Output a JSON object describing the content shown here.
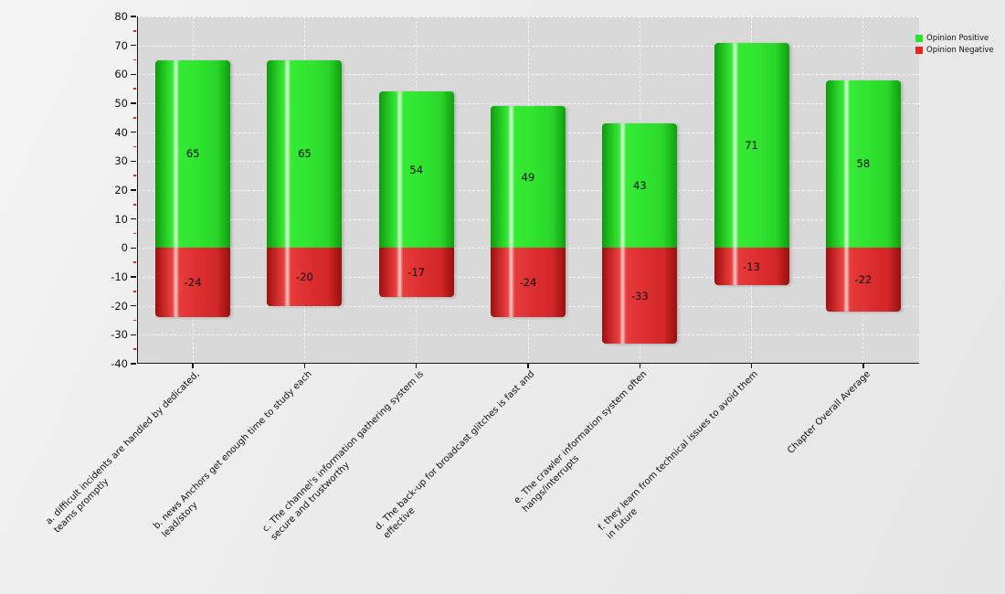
{
  "legend": {
    "items": [
      {
        "label": "Opinion Positive",
        "color": "#2ae32a"
      },
      {
        "label": "Opinion Negative",
        "color": "#e82525"
      }
    ]
  },
  "colors": {
    "positive": "#2ce02c",
    "negative": "#e03434",
    "plot_background": "#d9d9d9",
    "axis": "#1a1a1a",
    "minor_tick": "#dd2222",
    "value_label": "#0a0a0a"
  },
  "chart_data": {
    "type": "bar",
    "subtype": "diverging-stacked-column",
    "title": "",
    "xlabel": "",
    "ylabel": "",
    "ylim": [
      -40,
      80
    ],
    "ytick_step": 10,
    "yticks": [
      80,
      70,
      60,
      50,
      40,
      30,
      20,
      10,
      0,
      -10,
      -20,
      -30,
      -40
    ],
    "grid": "dashed",
    "legend_position": "top-right",
    "categories": [
      [
        "a. difficult incidents are handled by dedicated,",
        "teams promptly"
      ],
      [
        "b. news Anchors get enough time to study each",
        "lead/story"
      ],
      [
        "c. The channel's information gathering system is",
        "secure and trustworthy"
      ],
      [
        "d. The back-up for broadcast glitches is fast and",
        "effective"
      ],
      [
        "e. The crawler information system often",
        "hangs/interrupts"
      ],
      [
        "f. they learn from technical issues to avoid them",
        "in future"
      ],
      [
        "Chapter Overall Average"
      ]
    ],
    "series": [
      {
        "name": "Opinion Positive",
        "color": "#2ce02c",
        "values": [
          65,
          65,
          54,
          49,
          43,
          71,
          58
        ]
      },
      {
        "name": "Opinion Negative",
        "color": "#e03434",
        "values": [
          -24,
          -20,
          -17,
          -24,
          -33,
          -13,
          -22
        ]
      }
    ]
  }
}
